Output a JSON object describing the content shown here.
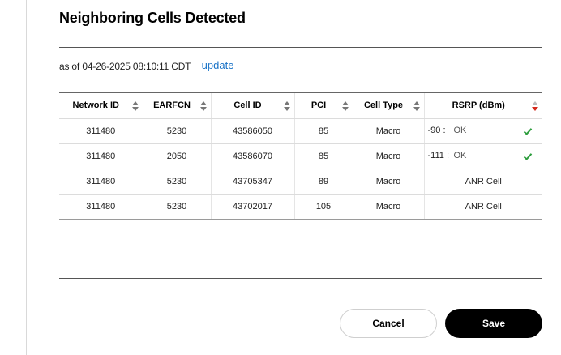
{
  "page": {
    "title": "Neighboring Cells Detected",
    "as_of_prefix": "as of",
    "as_of_datetime": "04-26-2025 08:10:11 CDT",
    "update_label": "update"
  },
  "table": {
    "columns": [
      {
        "label": "Network ID"
      },
      {
        "label": "EARFCN"
      },
      {
        "label": "Cell ID"
      },
      {
        "label": "PCI"
      },
      {
        "label": "Cell Type"
      },
      {
        "label": "RSRP (dBm)"
      }
    ],
    "sort_column": "RSRP (dBm)",
    "sort_direction": "descending",
    "rows": [
      {
        "network_id": "311480",
        "earfcn": "5230",
        "cell_id": "43586050",
        "pci": "85",
        "cell_type": "Macro",
        "rsrp": "-90 :",
        "rsrp_status": "OK",
        "check": "check-icon"
      },
      {
        "network_id": "311480",
        "earfcn": "2050",
        "cell_id": "43586070",
        "pci": "85",
        "cell_type": "Macro",
        "rsrp": "-111 :",
        "rsrp_status": "OK",
        "check": "check-icon"
      },
      {
        "network_id": "311480",
        "earfcn": "5230",
        "cell_id": "43705347",
        "pci": "89",
        "cell_type": "Macro",
        "rsrp_text": "ANR Cell"
      },
      {
        "network_id": "311480",
        "earfcn": "5230",
        "cell_id": "43702017",
        "pci": "105",
        "cell_type": "Macro",
        "rsrp_text": "ANR Cell"
      }
    ]
  },
  "buttons": {
    "cancel_label": "Cancel",
    "save_label": "Save"
  },
  "colors": {
    "link": "#1a73c7",
    "check": "#2e9e3e",
    "sort_active": "#d52b1e",
    "primary_button": "#000000"
  }
}
